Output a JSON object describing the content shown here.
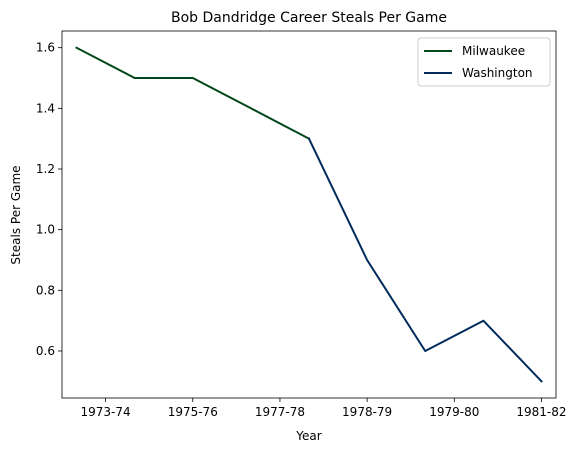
{
  "chart_data": {
    "type": "line",
    "title": "Bob Dandridge Career Steals Per Game",
    "xlabel": "Year",
    "ylabel": "Steals Per Game",
    "x_ticks": [
      {
        "label": "1973-74",
        "pos": 0.5
      },
      {
        "label": "1975-76",
        "pos": 2
      },
      {
        "label": "1977-78",
        "pos": 3.5
      },
      {
        "label": "1978-79",
        "pos": 5
      },
      {
        "label": "1979-80",
        "pos": 6.5
      },
      {
        "label": "1981-82",
        "pos": 8
      }
    ],
    "xlim": [
      -0.25,
      8.25
    ],
    "ylim": [
      0.445,
      1.655
    ],
    "y_ticks": [
      "0.6",
      "0.8",
      "1.0",
      "1.2",
      "1.4",
      "1.6"
    ],
    "series": [
      {
        "name": "Milwaukee",
        "color": "#00471B",
        "x": [
          0,
          1,
          2,
          3,
          4
        ],
        "values": [
          1.6,
          1.5,
          1.5,
          1.4,
          1.3
        ]
      },
      {
        "name": "Washington",
        "color": "#002B5C",
        "x": [
          4,
          5,
          6,
          7,
          8
        ],
        "values": [
          1.3,
          0.9,
          0.6,
          0.7,
          0.5
        ]
      }
    ],
    "legend": "top-right",
    "grid": false
  }
}
